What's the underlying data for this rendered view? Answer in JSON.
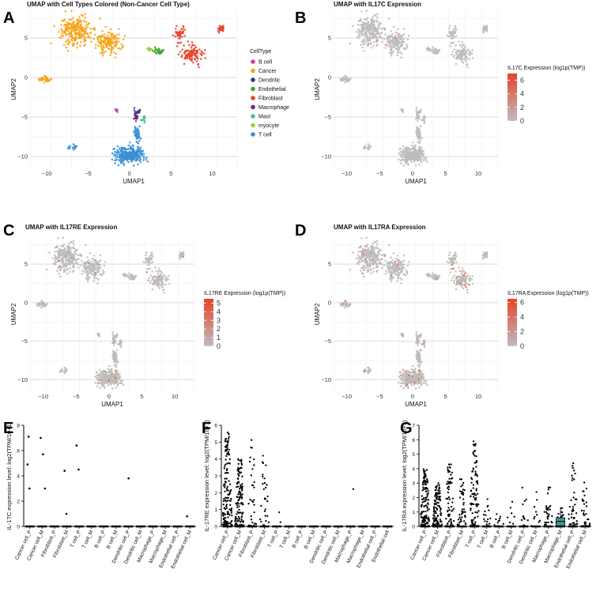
{
  "panel_letters": [
    "A",
    "B",
    "C",
    "D",
    "E",
    "F",
    "G"
  ],
  "chart_data": [
    {
      "panel": "A",
      "type": "scatter",
      "title": "UMAP with Cell Types Colored (Non-Cancer Cell Type)",
      "xlabel": "UMAP1",
      "ylabel": "UMAP2",
      "xlim": [
        -12,
        13
      ],
      "ylim": [
        -11.5,
        8.5
      ],
      "xticks": [
        -10,
        -5,
        0,
        5,
        10
      ],
      "yticks": [
        -10,
        -5,
        0,
        5
      ],
      "grid": true,
      "legend": {
        "title": "CellType",
        "placement": "right",
        "items": [
          {
            "name": "B cell",
            "color": "#c93fa8"
          },
          {
            "name": "Cancer",
            "color": "#f5a51c"
          },
          {
            "name": "Dendritic",
            "color": "#2c3a8f"
          },
          {
            "name": "Endothelial",
            "color": "#3fa535"
          },
          {
            "name": "Fibroblast",
            "color": "#e8432a"
          },
          {
            "name": "Macrophage",
            "color": "#6a2a8c"
          },
          {
            "name": "Mast",
            "color": "#4dbf9e"
          },
          {
            "name": "myocyte",
            "color": "#a5c93a"
          },
          {
            "name": "T cell",
            "color": "#3a8fd6"
          }
        ]
      },
      "clusters": [
        {
          "type": "Cancer",
          "center": [
            -6.5,
            5.8
          ],
          "spread": [
            1.8,
            1.6
          ],
          "n": 260
        },
        {
          "type": "Cancer",
          "center": [
            -2.5,
            4.5
          ],
          "spread": [
            1.4,
            1.3
          ],
          "n": 150
        },
        {
          "type": "Cancer",
          "center": [
            -10.2,
            -0.2
          ],
          "spread": [
            0.7,
            0.35
          ],
          "n": 45
        },
        {
          "type": "Fibroblast",
          "center": [
            6.0,
            5.5
          ],
          "spread": [
            0.5,
            0.7
          ],
          "n": 40
        },
        {
          "type": "Fibroblast",
          "center": [
            7.5,
            3.0
          ],
          "spread": [
            1.2,
            1.2
          ],
          "n": 110
        },
        {
          "type": "Fibroblast",
          "center": [
            11.0,
            6.2
          ],
          "spread": [
            0.45,
            0.3
          ],
          "n": 30
        },
        {
          "type": "Endothelial",
          "center": [
            3.5,
            3.3
          ],
          "spread": [
            0.5,
            0.4
          ],
          "n": 35
        },
        {
          "type": "myocyte",
          "center": [
            2.5,
            3.6
          ],
          "spread": [
            0.3,
            0.2
          ],
          "n": 12
        },
        {
          "type": "Macrophage",
          "center": [
            0.8,
            -4.8
          ],
          "spread": [
            0.2,
            0.7
          ],
          "n": 30
        },
        {
          "type": "Dendritic",
          "center": [
            1.1,
            -4.2
          ],
          "spread": [
            0.15,
            0.3
          ],
          "n": 10
        },
        {
          "type": "Mast",
          "center": [
            1.7,
            -5.2
          ],
          "spread": [
            0.2,
            0.45
          ],
          "n": 15
        },
        {
          "type": "B cell",
          "center": [
            -1.5,
            -4.2
          ],
          "spread": [
            0.25,
            0.2
          ],
          "n": 10
        },
        {
          "type": "T cell",
          "center": [
            0.0,
            -9.8
          ],
          "spread": [
            1.6,
            0.9
          ],
          "n": 320
        },
        {
          "type": "T cell",
          "center": [
            0.9,
            -7.2
          ],
          "spread": [
            0.35,
            0.8
          ],
          "n": 50
        },
        {
          "type": "T cell",
          "center": [
            -7.0,
            -8.8
          ],
          "spread": [
            0.7,
            0.25
          ],
          "n": 15
        }
      ]
    },
    {
      "panel": "B",
      "type": "scatter",
      "title": "UMAP with IL17C Expression",
      "xlabel": "UMAP1",
      "ylabel": "UMAP2",
      "xlim": [
        -12,
        13
      ],
      "ylim": [
        -11.5,
        8.5
      ],
      "xticks": [
        -10,
        -5,
        0,
        5,
        10
      ],
      "yticks": [
        -10,
        -5,
        0,
        5
      ],
      "color_scale": {
        "title": "IL17C Expression (log1p(TMP))",
        "min": 0,
        "max": 7,
        "ticks": [
          0,
          2,
          4,
          6
        ],
        "low_color": "#bdbdbd",
        "high_color": "#e8432a"
      },
      "high_fraction": 0.005
    },
    {
      "panel": "C",
      "type": "scatter",
      "title": "UMAP with IL17RE Expression",
      "xlabel": "UMAP1",
      "ylabel": "UMAP2",
      "xlim": [
        -12,
        13
      ],
      "ylim": [
        -11.5,
        8.5
      ],
      "xticks": [
        -10,
        -5,
        0,
        5,
        10
      ],
      "yticks": [
        -10,
        -5,
        0,
        5
      ],
      "color_scale": {
        "title": "IL17RE Expression (log1p(TMP))",
        "min": 0,
        "max": 5.5,
        "ticks": [
          0,
          1,
          2,
          3,
          4,
          5
        ],
        "low_color": "#bdbdbd",
        "high_color": "#e8432a"
      },
      "high_fraction": 0.05
    },
    {
      "panel": "D",
      "type": "scatter",
      "title": "UMAP with IL17RA Expression",
      "xlabel": "UMAP1",
      "ylabel": "UMAP2",
      "xlim": [
        -12,
        13
      ],
      "ylim": [
        -11.5,
        8.5
      ],
      "xticks": [
        -10,
        -5,
        0,
        5,
        10
      ],
      "yticks": [
        -10,
        -5,
        0,
        5
      ],
      "color_scale": {
        "title": "IL17RA Expression (log1p(TMP))",
        "min": 0,
        "max": 6.5,
        "ticks": [
          0,
          2,
          4,
          6
        ],
        "low_color": "#bdbdbd",
        "high_color": "#e8432a"
      },
      "high_fraction": 0.08
    },
    {
      "panel": "E",
      "type": "scatter",
      "ylabel": "IL-17C expression level: log2(TPM/10+1)",
      "ylim": [
        0,
        8
      ],
      "yticks": [
        0,
        2,
        4,
        6,
        8
      ],
      "categories": [
        "Cancer cell_P",
        "Cancer cell_M",
        "Fibroblast_P",
        "Fibroblast_M",
        "T cell_P",
        "T cell_M",
        "B cell_P",
        "B cell_M",
        "Dendritic cell_P",
        "Dendritic cell_M",
        "Macrophage_P",
        "Macrophage_M",
        "Endothelial cell_P",
        "Endothelial cell_M"
      ],
      "nonzero_points": [
        {
          "category": "Cancer cell_P",
          "values": [
            7.1,
            4.9,
            3.0
          ]
        },
        {
          "category": "Cancer cell_M",
          "values": [
            7.0,
            5.7,
            3.0
          ]
        },
        {
          "category": "Fibroblast_M",
          "values": [
            4.4,
            1.0
          ]
        },
        {
          "category": "T cell_P",
          "values": [
            6.4,
            4.5
          ]
        },
        {
          "category": "Dendritic cell_P",
          "values": [
            3.8
          ]
        },
        {
          "category": "Endothelial cell_M",
          "values": [
            0.8
          ]
        }
      ]
    },
    {
      "panel": "F",
      "type": "scatter",
      "ylabel": "IL-17RE expression level: log2(TPM/10+1)",
      "ylim": [
        0,
        6
      ],
      "yticks": [
        0,
        1,
        2,
        3,
        4,
        5,
        6
      ],
      "categories": [
        "Cancer cell_P",
        "Cancer cell_M",
        "Fibroblast_P",
        "Fibroblast_M",
        "T cell_P",
        "T cell_M",
        "B cell_P",
        "B cell_M",
        "Dendritic cell_P",
        "Dendritic cell_M",
        "Macrophage_P",
        "Macrophage_M",
        "Endothelial cell_P",
        "Endothelial cell"
      ],
      "distributions": [
        {
          "category": "Cancer cell_P",
          "n": 140,
          "max": 5.6
        },
        {
          "category": "Cancer cell_M",
          "n": 120,
          "max": 4.0
        },
        {
          "category": "Fibroblast_P",
          "n": 35,
          "max": 5.2
        },
        {
          "category": "Fibroblast_M",
          "n": 30,
          "max": 4.4
        },
        {
          "category": "T cell_P",
          "n": 2,
          "max": 1.8
        },
        {
          "category": "Macrophage_P",
          "n": 1,
          "max": 3.2
        }
      ]
    },
    {
      "panel": "G",
      "type": "scatter",
      "ylabel": "IL-17RA expression level: log2(TPM/10+1)",
      "ylim": [
        0,
        7
      ],
      "yticks": [
        0,
        1,
        2,
        3,
        4,
        5,
        6,
        7
      ],
      "categories": [
        "Cancer cell_P",
        "Cancer cell_M",
        "Fibroblast_P",
        "Fibroblast_M",
        "T cell_P",
        "T cell_M",
        "B cell_P",
        "B cell_M",
        "Dendritic cell_P",
        "Dendritic cell_M",
        "Macrophage_P",
        "Macrophage_M",
        "Endothelial cell_P",
        "Endothelial cell_M"
      ],
      "distributions": [
        {
          "category": "Cancer cell_P",
          "n": 130,
          "max": 4.0
        },
        {
          "category": "Cancer cell_M",
          "n": 110,
          "max": 3.0
        },
        {
          "category": "Fibroblast_P",
          "n": 70,
          "max": 4.3
        },
        {
          "category": "Fibroblast_M",
          "n": 45,
          "max": 3.4
        },
        {
          "category": "T cell_P",
          "n": 90,
          "max": 6.0
        },
        {
          "category": "T cell_M",
          "n": 15,
          "max": 2.0
        },
        {
          "category": "B cell_P",
          "n": 10,
          "max": 1.0
        },
        {
          "category": "B cell_M",
          "n": 8,
          "max": 1.8
        },
        {
          "category": "Dendritic cell_P",
          "n": 12,
          "max": 4.0
        },
        {
          "category": "Dendritic cell_M",
          "n": 10,
          "max": 2.7
        },
        {
          "category": "Macrophage_P",
          "n": 30,
          "max": 2.7
        },
        {
          "category": "Macrophage_M",
          "n": 25,
          "max": 1.3
        },
        {
          "category": "Endothelial cell_P",
          "n": 40,
          "max": 4.4
        },
        {
          "category": "Endothelial cell_M",
          "n": 30,
          "max": 3.3
        }
      ],
      "box": {
        "category": "Macrophage_M",
        "q1": 0.05,
        "median": 0.35,
        "q3": 0.6,
        "whisker_high": 1.2,
        "color": "#3a9a9a"
      }
    }
  ]
}
